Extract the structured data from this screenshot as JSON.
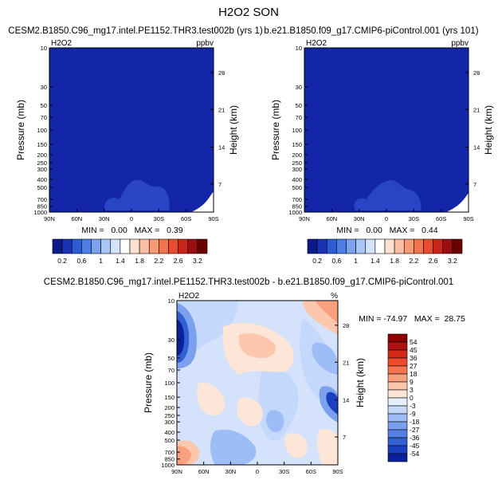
{
  "title": "H2O2 SON",
  "panels": [
    {
      "case_title": "CESM2.B1850.C96_mg17.intel.PE1152.THR3.test002b (yrs 1)",
      "var_label": "H2O2",
      "units": "ppbv",
      "min_max": "MIN =   0.00   MAX =   0.39"
    },
    {
      "case_title": "b.e21.B1850.f09_g17.CMIP6-piControl.001 (yrs 101)",
      "var_label": "H2O2",
      "units": "ppbv",
      "min_max": "MIN =   0.00   MAX =   0.44"
    },
    {
      "case_title": "CESM2.B1850.C96_mg17.intel.PE1152.THR3.test002b - b.e21.B1850.f09_g17.CMIP6-piControl.001",
      "var_label": "H2O2",
      "units": "%",
      "min_max": "MIN = -74.97   MAX =  28.75"
    }
  ],
  "axes": {
    "ylabel": "Pressure (mb)",
    "ylabel_right": "Height (km)"
  },
  "chart_data": [
    {
      "type": "heatmap",
      "title": "CESM2.B1850.C96_mg17.intel.PE1152.THR3.test002b (yrs 1)",
      "x_ticks": [
        "90N",
        "60N",
        "30N",
        "0",
        "30S",
        "60S",
        "90S"
      ],
      "y_ticks": [
        "10",
        "30",
        "50",
        "70",
        "100",
        "150",
        "200",
        "250",
        "300",
        "400",
        "500",
        "700",
        "850",
        "1000"
      ],
      "y_right_ticks": [
        "28",
        "21",
        "14",
        "7"
      ],
      "ylim": [
        1000,
        10
      ],
      "colorbar_levels": [
        "0.2",
        "0.6",
        "1",
        "1.4",
        "1.8",
        "2.2",
        "2.6",
        "3.2"
      ],
      "min": 0.0,
      "max": 0.39
    },
    {
      "type": "heatmap",
      "title": "b.e21.B1850.f09_g17.CMIP6-piControl.001 (yrs 101)",
      "x_ticks": [
        "90N",
        "60N",
        "30N",
        "0",
        "30S",
        "60S",
        "90S"
      ],
      "y_ticks": [
        "10",
        "30",
        "50",
        "70",
        "100",
        "150",
        "200",
        "250",
        "300",
        "400",
        "500",
        "700",
        "850",
        "1000"
      ],
      "y_right_ticks": [
        "28",
        "21",
        "14",
        "7"
      ],
      "ylim": [
        1000,
        10
      ],
      "colorbar_levels": [
        "0.2",
        "0.6",
        "1",
        "1.4",
        "1.8",
        "2.2",
        "2.6",
        "3.2"
      ],
      "min": 0.0,
      "max": 0.44
    },
    {
      "type": "heatmap",
      "title": "CESM2.B1850.C96_mg17.intel.PE1152.THR3.test002b - b.e21.B1850.f09_g17.CMIP6-piControl.001",
      "x_ticks": [
        "90N",
        "60N",
        "30N",
        "0",
        "30S",
        "60S",
        "90S"
      ],
      "y_ticks": [
        "10",
        "30",
        "50",
        "70",
        "100",
        "150",
        "200",
        "250",
        "300",
        "400",
        "500",
        "700",
        "850",
        "1000"
      ],
      "y_right_ticks": [
        "28",
        "21",
        "14",
        "7"
      ],
      "ylim": [
        1000,
        10
      ],
      "colorbar_levels": [
        "54",
        "45",
        "36",
        "27",
        "18",
        "9",
        "3",
        "0",
        "-3",
        "-9",
        "-18",
        "-27",
        "-36",
        "-45",
        "-54"
      ],
      "min": -74.97,
      "max": 28.75
    }
  ],
  "colors": {
    "abs_cbar": [
      "#0c1a8c",
      "#1a33b3",
      "#2e5cd6",
      "#4d7ee8",
      "#7ba3f0",
      "#a9c5f7",
      "#d4e3fb",
      "#ffffff",
      "#fde0d0",
      "#fbbfa5",
      "#f79a78",
      "#f2744f",
      "#e84c2e",
      "#c9261a",
      "#9a0e10",
      "#6b0000"
    ],
    "diff_cbar": [
      "#8b0000",
      "#b01010",
      "#d42a1a",
      "#ee4a2c",
      "#f6744f",
      "#f9a07d",
      "#fcc7ad",
      "#fde6d8",
      "#e6efff",
      "#c4d8fb",
      "#9dbdf6",
      "#7aa0ee",
      "#5580e3",
      "#335fd5",
      "#1c3fbf",
      "#0a1f9a"
    ],
    "field_dark": "#1426a8",
    "field_light": "#2a45c4"
  }
}
